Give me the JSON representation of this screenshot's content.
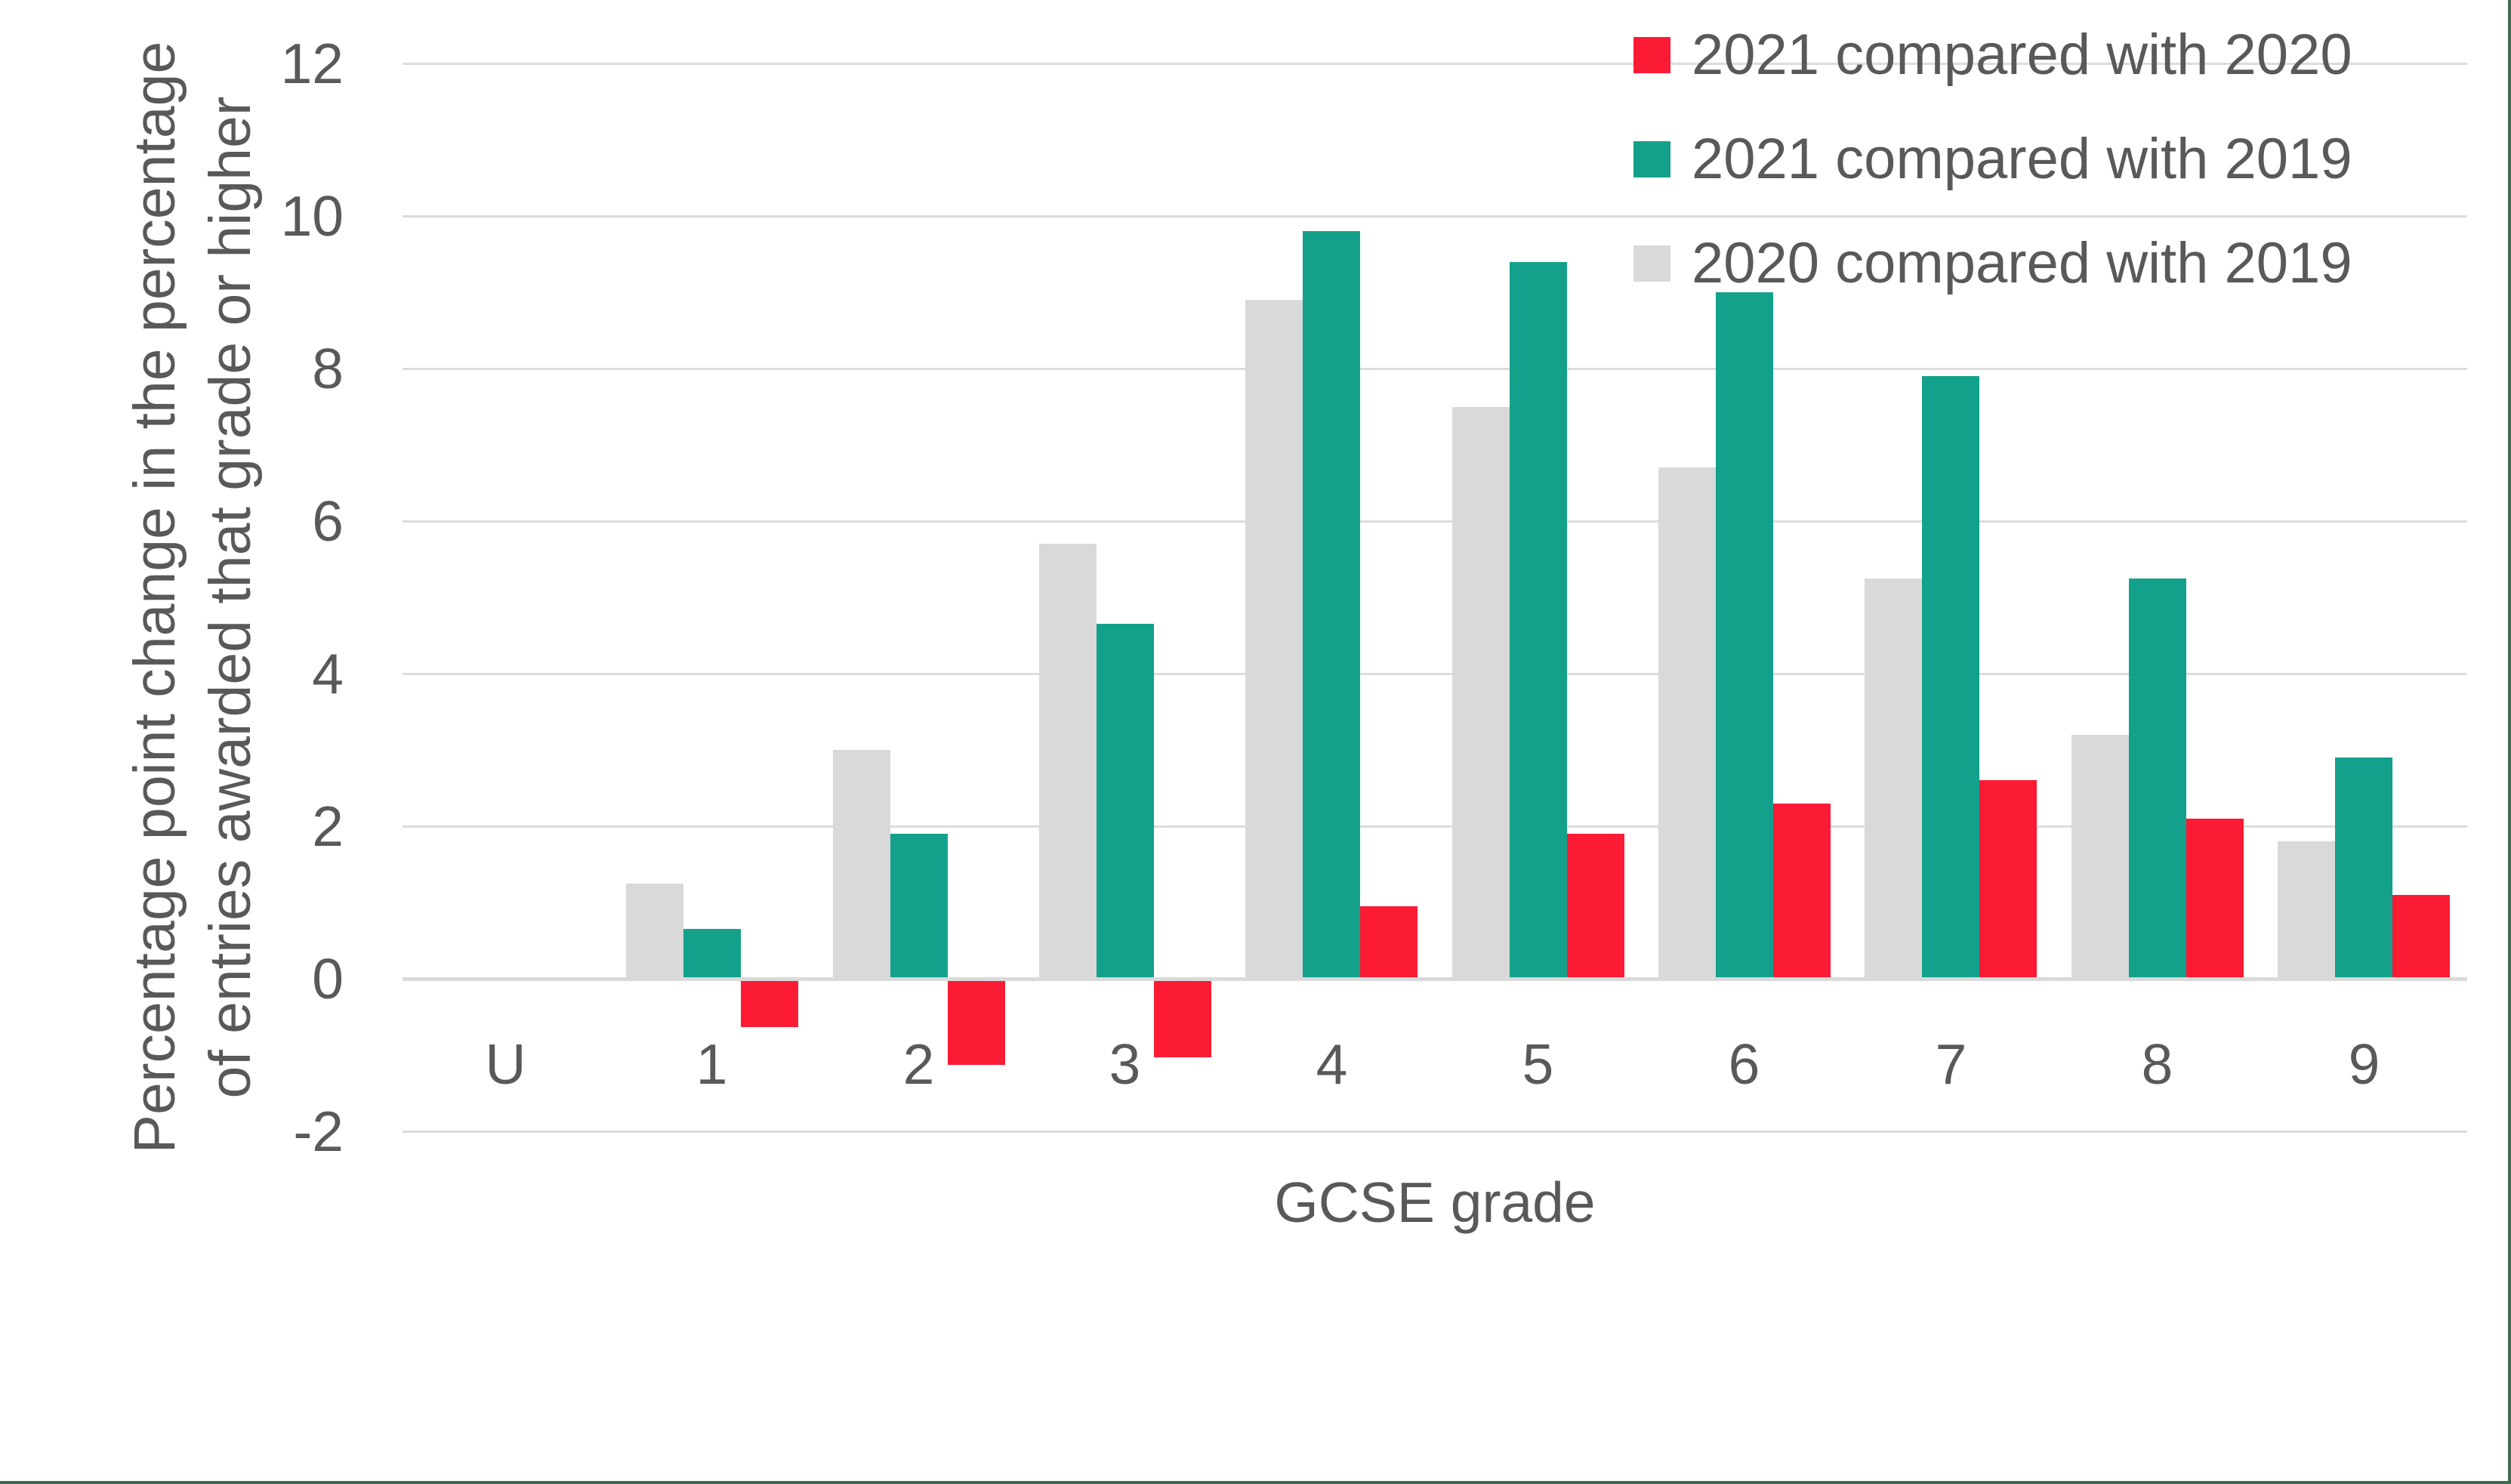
{
  "chart_data": {
    "type": "bar",
    "title": "",
    "xlabel": "GCSE grade",
    "ylabel_lines": [
      "Percentage point change in the percentage",
      "of entries awarded that grade or higher"
    ],
    "categories": [
      "U",
      "1",
      "2",
      "3",
      "4",
      "5",
      "6",
      "7",
      "8",
      "9"
    ],
    "series": [
      {
        "name": "2021 compared with 2020",
        "color": "#fb1b35",
        "values": [
          0,
          -0.6,
          -1.1,
          -1.0,
          0.95,
          1.9,
          2.3,
          2.6,
          2.1,
          1.1
        ]
      },
      {
        "name": "2021 compared with 2019",
        "color": "#13a18c",
        "values": [
          0,
          0.65,
          1.9,
          4.65,
          9.8,
          9.4,
          9.0,
          7.9,
          5.25,
          2.9
        ]
      },
      {
        "name": "2020 compared with 2019",
        "color": "#d9d9d9",
        "values": [
          0,
          1.25,
          3.0,
          5.7,
          8.9,
          7.5,
          6.7,
          5.25,
          3.2,
          1.8
        ]
      }
    ],
    "bar_draw_order_left_to_right": [
      "2020 compared with 2019",
      "2021 compared with 2019",
      "2021 compared with 2020"
    ],
    "ylim": [
      -2,
      12
    ],
    "yticks": [
      12,
      10,
      8,
      6,
      4,
      2,
      0,
      -2
    ],
    "grid": true,
    "legend_position": "top-right"
  },
  "colors": {
    "text": "#595959",
    "gridline": "#dcdcdc",
    "zero_line": "#d9d9d9",
    "page_border": "#3e6b4f",
    "background": "#ffffff"
  }
}
